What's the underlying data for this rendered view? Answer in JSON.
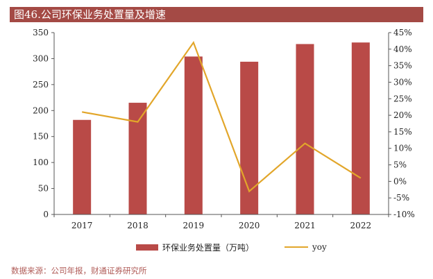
{
  "title": "图46.公司环保业务处置量及增速",
  "source": "数据来源：公司年报，财通证券研究所",
  "colors": {
    "bar": "#b94a47",
    "line": "#e2a62a",
    "title_bg": "#a44a45"
  },
  "chart_data": {
    "type": "bar",
    "categories": [
      "2017",
      "2018",
      "2019",
      "2020",
      "2021",
      "2022"
    ],
    "series": [
      {
        "name": "环保业务处置量（万吨）",
        "type": "bar",
        "axis": "left",
        "values": [
          182,
          215,
          304,
          294,
          328,
          331
        ]
      },
      {
        "name": "yoy",
        "type": "line",
        "axis": "right",
        "values": [
          21.0,
          18.0,
          42.0,
          -3.0,
          11.5,
          1.0
        ]
      }
    ],
    "y_left": {
      "min": 0,
      "max": 350,
      "step": 50,
      "ticks": [
        "0",
        "50",
        "100",
        "150",
        "200",
        "250",
        "300",
        "350"
      ]
    },
    "y_right": {
      "min": -10,
      "max": 45,
      "step": 5,
      "ticks": [
        "-10%",
        "-5%",
        "0%",
        "5%",
        "10%",
        "15%",
        "20%",
        "25%",
        "30%",
        "35%",
        "40%",
        "45%"
      ]
    },
    "legend_position": "bottom",
    "grid": false
  }
}
